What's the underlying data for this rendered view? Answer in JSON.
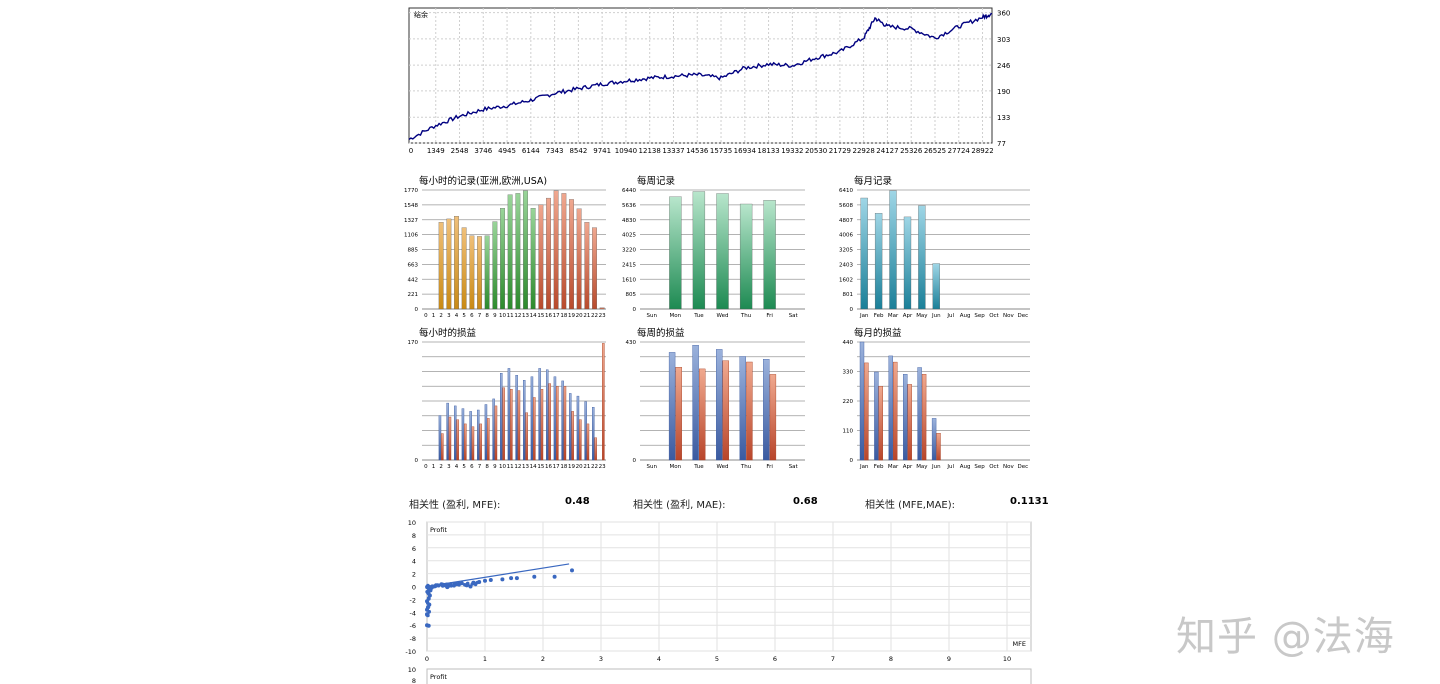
{
  "balance_chart": {
    "legend": "结余",
    "x_ticks": [
      "0",
      "1349",
      "2548",
      "3746",
      "4945",
      "6144",
      "7343",
      "8542",
      "9741",
      "10940",
      "12138",
      "13337",
      "14536",
      "15735",
      "16934",
      "18133",
      "19332",
      "20530",
      "21729",
      "22928",
      "24127",
      "25326",
      "26525",
      "27724",
      "28922"
    ],
    "y_ticks": [
      "360",
      "303",
      "246",
      "190",
      "133",
      "77"
    ],
    "line_color": "#000080"
  },
  "hour_entries": {
    "title": "每小时的记录(亚洲,欧洲,USA)",
    "y_ticks": [
      "1770",
      "1548",
      "1327",
      "1106",
      "885",
      "663",
      "442",
      "221",
      "0"
    ],
    "x_ticks": [
      "0",
      "1",
      "2",
      "3",
      "4",
      "5",
      "6",
      "7",
      "8",
      "9",
      "10",
      "11",
      "12",
      "13",
      "14",
      "15",
      "16",
      "17",
      "18",
      "19",
      "20",
      "21",
      "22",
      "23"
    ]
  },
  "week_entries": {
    "title": "每周记录",
    "y_ticks": [
      "6440",
      "5636",
      "4830",
      "4025",
      "3220",
      "2415",
      "1610",
      "805",
      "0"
    ],
    "x_ticks": [
      "Sun",
      "Mon",
      "Tue",
      "Wed",
      "Thu",
      "Fri",
      "Sat"
    ]
  },
  "month_entries": {
    "title": "每月记录",
    "y_ticks": [
      "6410",
      "5608",
      "4807",
      "4006",
      "3205",
      "2403",
      "1602",
      "801",
      "0"
    ],
    "x_ticks": [
      "Jan",
      "Feb",
      "Mar",
      "Apr",
      "May",
      "Jun",
      "Jul",
      "Aug",
      "Sep",
      "Oct",
      "Nov",
      "Dec"
    ]
  },
  "hour_pnl": {
    "title": "每小时的损益",
    "y_ticks": [
      "170",
      "0"
    ],
    "x_ticks": [
      "0",
      "1",
      "2",
      "3",
      "4",
      "5",
      "6",
      "7",
      "8",
      "9",
      "10",
      "11",
      "12",
      "13",
      "14",
      "15",
      "16",
      "17",
      "18",
      "19",
      "20",
      "21",
      "22",
      "23"
    ]
  },
  "week_pnl": {
    "title": "每周的损益",
    "y_ticks": [
      "430",
      "0"
    ],
    "x_ticks": [
      "Sun",
      "Mon",
      "Tue",
      "Wed",
      "Thu",
      "Fri",
      "Sat"
    ]
  },
  "month_pnl": {
    "title": "每月的损益",
    "y_ticks": [
      "440",
      "330",
      "220",
      "110",
      "0"
    ],
    "x_ticks": [
      "Jan",
      "Feb",
      "Mar",
      "Apr",
      "May",
      "Jun",
      "Jul",
      "Aug",
      "Sep",
      "Oct",
      "Nov",
      "Dec"
    ]
  },
  "correlations": [
    {
      "label": "相关性 (盈利, MFE):",
      "value": "0.48"
    },
    {
      "label": "相关性 (盈利, MAE):",
      "value": "0.68"
    },
    {
      "label": "相关性 (MFE,MAE):",
      "value": "0.1131"
    }
  ],
  "scatter_mfe": {
    "ylabel": "Profit",
    "xlabel": "MFE",
    "y_ticks": [
      "10",
      "8",
      "6",
      "4",
      "2",
      "0",
      "-2",
      "-4",
      "-6",
      "-8",
      "-10"
    ],
    "x_ticks": [
      "0",
      "1",
      "2",
      "3",
      "4",
      "5",
      "6",
      "7",
      "8",
      "9",
      "10"
    ]
  },
  "scatter2": {
    "ylabel": "Profit",
    "y_ticks": [
      "10",
      "8"
    ]
  },
  "watermark": "知乎 @法海",
  "chart_data": [
    {
      "type": "line",
      "name": "balance",
      "x": [
        0,
        1349,
        2548,
        3746,
        4945,
        6144,
        7343,
        8542,
        9741,
        10940,
        12138,
        13337,
        14536,
        15735,
        16934,
        18133,
        19332,
        20530,
        21729,
        22928,
        23500,
        24127,
        25326,
        26525,
        27724,
        28922,
        29400
      ],
      "values": [
        85,
        115,
        135,
        150,
        158,
        170,
        185,
        195,
        205,
        212,
        218,
        222,
        225,
        218,
        240,
        248,
        245,
        262,
        275,
        305,
        348,
        330,
        325,
        305,
        330,
        350,
        358
      ],
      "ylim": [
        77,
        370
      ]
    },
    {
      "type": "bar",
      "name": "hour_entries",
      "categories": [
        "0",
        "1",
        "2",
        "3",
        "4",
        "5",
        "6",
        "7",
        "8",
        "9",
        "10",
        "11",
        "12",
        "13",
        "14",
        "15",
        "16",
        "17",
        "18",
        "19",
        "20",
        "21",
        "22",
        "23"
      ],
      "values": [
        0,
        0,
        1290,
        1340,
        1380,
        1210,
        1090,
        1080,
        1090,
        1300,
        1500,
        1700,
        1720,
        1760,
        1500,
        1550,
        1650,
        1760,
        1720,
        1630,
        1490,
        1290,
        1210,
        20
      ],
      "ylim": [
        0,
        1770
      ]
    },
    {
      "type": "bar",
      "name": "week_entries",
      "categories": [
        "Sun",
        "Mon",
        "Tue",
        "Wed",
        "Thu",
        "Fri",
        "Sat"
      ],
      "values": [
        0,
        6080,
        6360,
        6250,
        5680,
        5880,
        0
      ],
      "ylim": [
        0,
        6440
      ]
    },
    {
      "type": "bar",
      "name": "month_entries",
      "categories": [
        "Jan",
        "Feb",
        "Mar",
        "Apr",
        "May",
        "Jun",
        "Jul",
        "Aug",
        "Sep",
        "Oct",
        "Nov",
        "Dec"
      ],
      "values": [
        5980,
        5160,
        6370,
        4960,
        5570,
        2450,
        0,
        0,
        0,
        0,
        0,
        0
      ],
      "ylim": [
        0,
        6410
      ]
    },
    {
      "type": "bar",
      "name": "hour_pnl",
      "categories": [
        "0",
        "1",
        "2",
        "3",
        "4",
        "5",
        "6",
        "7",
        "8",
        "9",
        "10",
        "11",
        "12",
        "13",
        "14",
        "15",
        "16",
        "17",
        "18",
        "19",
        "20",
        "21",
        "22",
        "23"
      ],
      "series": [
        {
          "values": [
            0,
            0,
            64,
            82,
            78,
            74,
            70,
            72,
            80,
            88,
            125,
            132,
            122,
            115,
            120,
            132,
            130,
            120,
            114,
            96,
            92,
            84,
            76,
            0
          ]
        },
        {
          "values": [
            0,
            0,
            38,
            62,
            58,
            52,
            48,
            52,
            60,
            78,
            104,
            102,
            100,
            68,
            90,
            102,
            110,
            106,
            106,
            70,
            58,
            52,
            32,
            168
          ]
        }
      ],
      "ylim": [
        0,
        170
      ]
    },
    {
      "type": "bar",
      "name": "week_pnl",
      "categories": [
        "Sun",
        "Mon",
        "Tue",
        "Wed",
        "Thu",
        "Fri",
        "Sat"
      ],
      "series": [
        {
          "values": [
            0,
            392,
            418,
            403,
            377,
            367,
            0
          ]
        },
        {
          "values": [
            0,
            338,
            332,
            362,
            357,
            312,
            0
          ]
        }
      ],
      "ylim": [
        0,
        430
      ]
    },
    {
      "type": "bar",
      "name": "month_pnl",
      "categories": [
        "Jan",
        "Feb",
        "Mar",
        "Apr",
        "May",
        "Jun",
        "Jul",
        "Aug",
        "Sep",
        "Oct",
        "Nov",
        "Dec"
      ],
      "series": [
        {
          "values": [
            440,
            328,
            388,
            320,
            345,
            155,
            0,
            0,
            0,
            0,
            0,
            0
          ]
        },
        {
          "values": [
            362,
            275,
            365,
            282,
            320,
            100,
            0,
            0,
            0,
            0,
            0,
            0
          ]
        }
      ],
      "ylim": [
        0,
        440
      ]
    },
    {
      "type": "scatter",
      "name": "profit_vs_mfe",
      "points": [
        [
          0,
          -6
        ],
        [
          0.03,
          -6.1
        ],
        [
          0,
          -4.3
        ],
        [
          0,
          -3.6
        ],
        [
          0.02,
          -3.2
        ],
        [
          0.04,
          -2.8
        ],
        [
          0,
          -2.3
        ],
        [
          0.03,
          -1.9
        ],
        [
          0.05,
          -1.4
        ],
        [
          0.02,
          -1.0
        ],
        [
          0.06,
          -0.6
        ],
        [
          0.08,
          -0.2
        ],
        [
          0.1,
          0
        ],
        [
          0.15,
          0.1
        ],
        [
          0.2,
          0.15
        ],
        [
          0.3,
          0.2
        ],
        [
          0.4,
          0.3
        ],
        [
          0.5,
          0.4
        ],
        [
          0.55,
          0.45
        ],
        [
          0.6,
          0.5
        ],
        [
          0.8,
          0.6
        ],
        [
          0.9,
          0.7
        ],
        [
          1.0,
          0.9
        ],
        [
          1.1,
          1.0
        ],
        [
          1.3,
          1.1
        ],
        [
          1.45,
          1.3
        ],
        [
          1.55,
          1.3
        ],
        [
          1.85,
          1.5
        ],
        [
          2.2,
          1.5
        ],
        [
          2.5,
          2.5
        ],
        [
          0.75,
          0
        ],
        [
          0.35,
          -0.1
        ],
        [
          0.25,
          0.35
        ]
      ],
      "trend": [
        [
          0,
          0
        ],
        [
          2.45,
          3.5
        ]
      ],
      "xlim": [
        0,
        10
      ],
      "ylim": [
        -10,
        10
      ]
    }
  ]
}
